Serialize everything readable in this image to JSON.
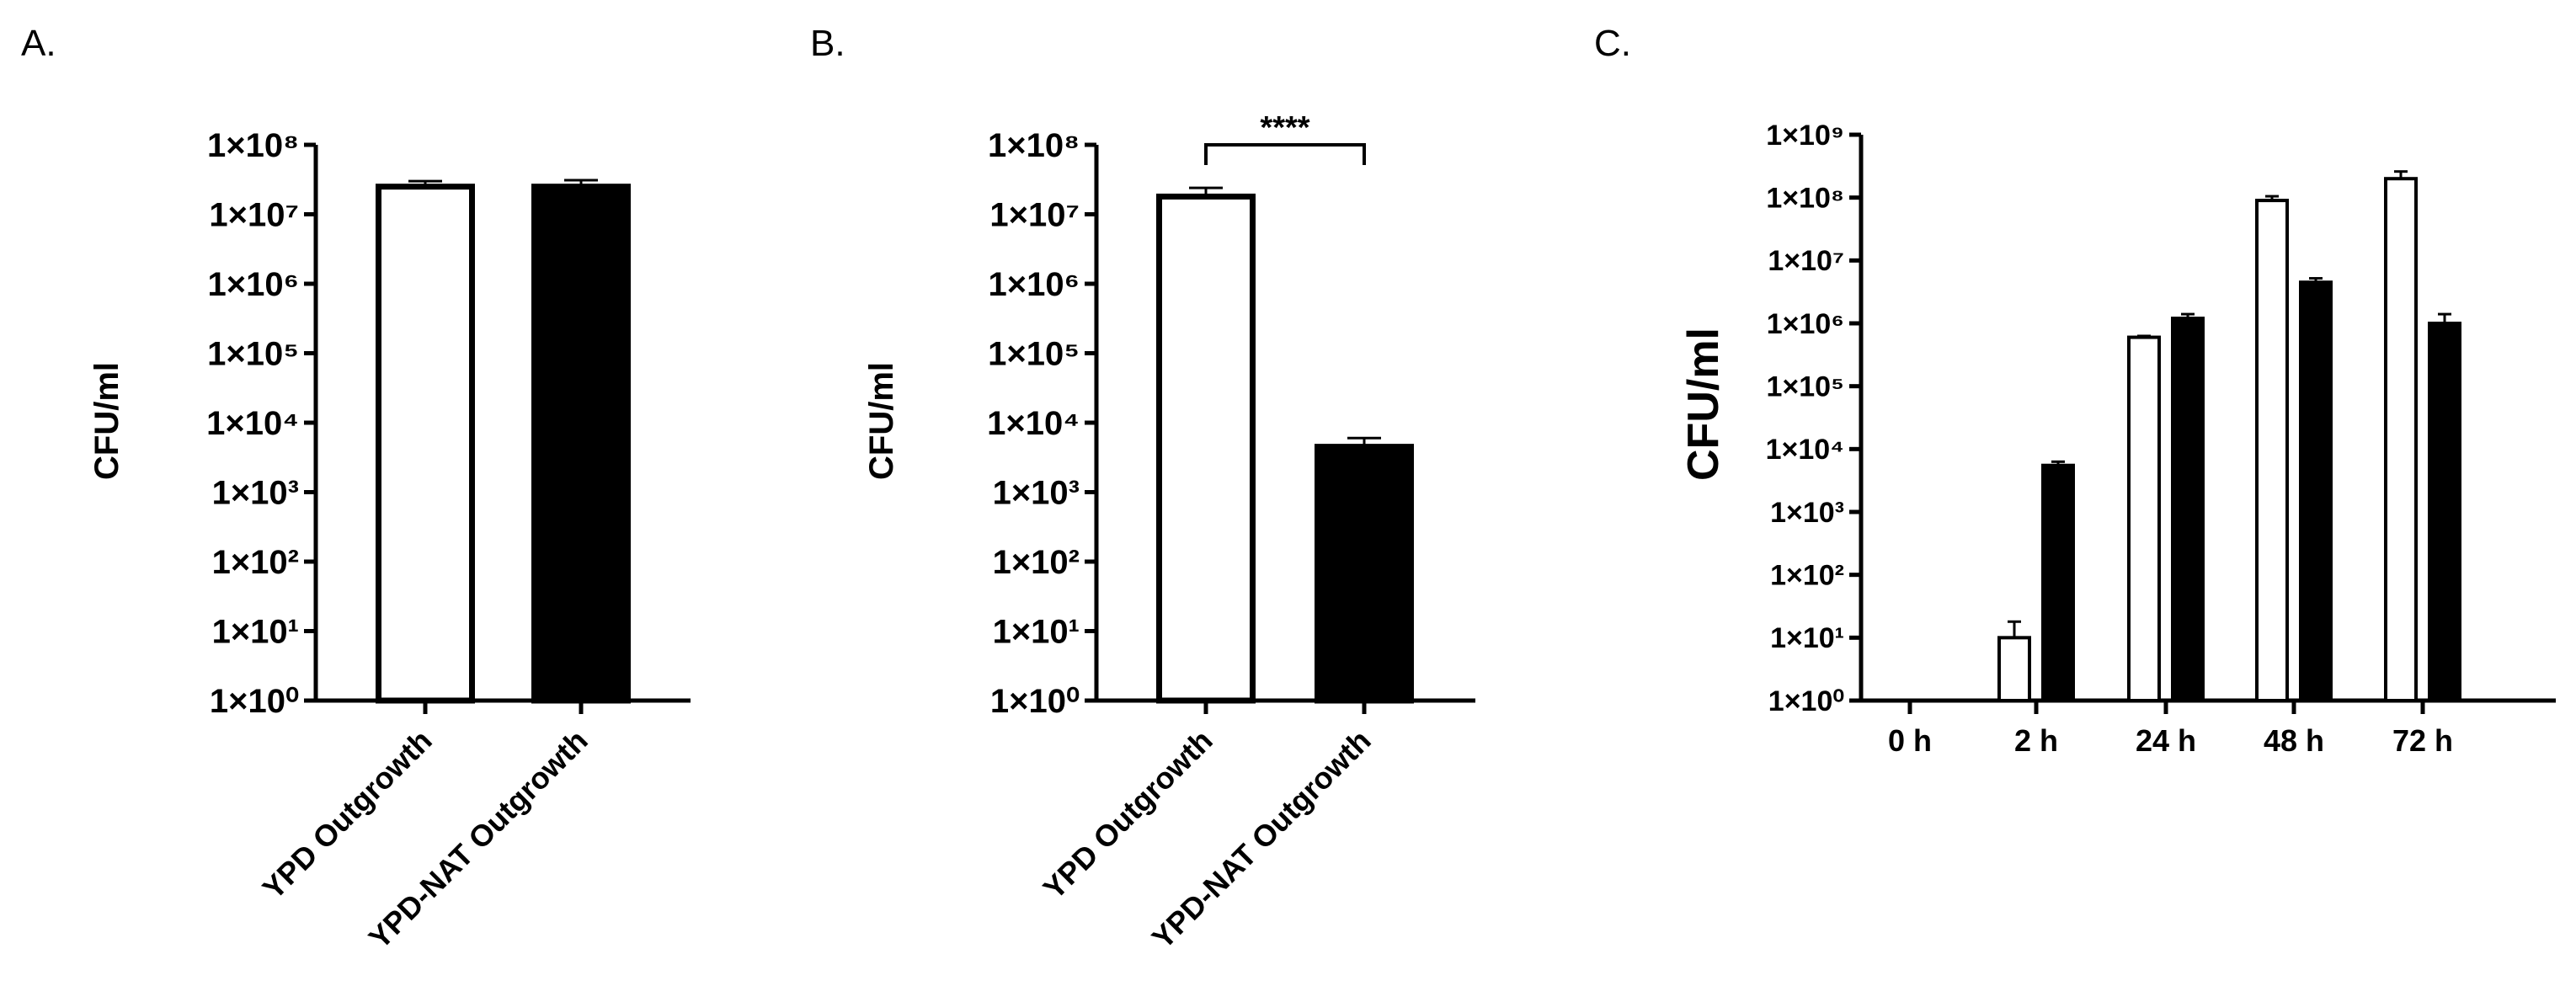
{
  "figure": {
    "panel_labels": [
      "A.",
      "B.",
      "C."
    ]
  },
  "chart_data": [
    {
      "type": "bar",
      "panel": "A.",
      "ylabel": "CFU/ml",
      "yscale": "log",
      "ylim": [
        1,
        100000000
      ],
      "categories": [
        "YPD Outgrowth",
        "YPD-NAT Outgrowth"
      ],
      "series": [
        {
          "values": [
            25000000,
            25000000
          ],
          "errors": [
            5000000,
            6000000
          ],
          "fill": [
            "#ffffff",
            "#000000"
          ]
        }
      ],
      "annotations": []
    },
    {
      "type": "bar",
      "panel": "B.",
      "ylabel": "CFU/ml",
      "yscale": "log",
      "ylim": [
        1,
        100000000
      ],
      "categories": [
        "YPD Outgrowth",
        "YPD-NAT Outgrowth"
      ],
      "series": [
        {
          "values": [
            18000000,
            4500
          ],
          "errors": [
            6000000,
            1500
          ],
          "fill": [
            "#ffffff",
            "#000000"
          ]
        }
      ],
      "annotations": [
        {
          "text": "****",
          "between": [
            0,
            1
          ]
        }
      ]
    },
    {
      "type": "bar",
      "panel": "C.",
      "ylabel": "CFU/ml",
      "yscale": "log",
      "ylim": [
        1,
        1000000000
      ],
      "categories": [
        "0 h",
        "2 h",
        "24 h",
        "48 h",
        "72 h"
      ],
      "series": [
        {
          "fill": "#ffffff",
          "values": [
            0,
            10,
            600000,
            90000000,
            200000000
          ],
          "errors": [
            0,
            8,
            30000,
            15000000,
            60000000
          ]
        },
        {
          "fill": "#000000",
          "values": [
            0,
            5500,
            1200000,
            4500000,
            1000000
          ],
          "errors": [
            0,
            800,
            200000,
            700000,
            400000
          ]
        }
      ],
      "annotations": []
    }
  ]
}
